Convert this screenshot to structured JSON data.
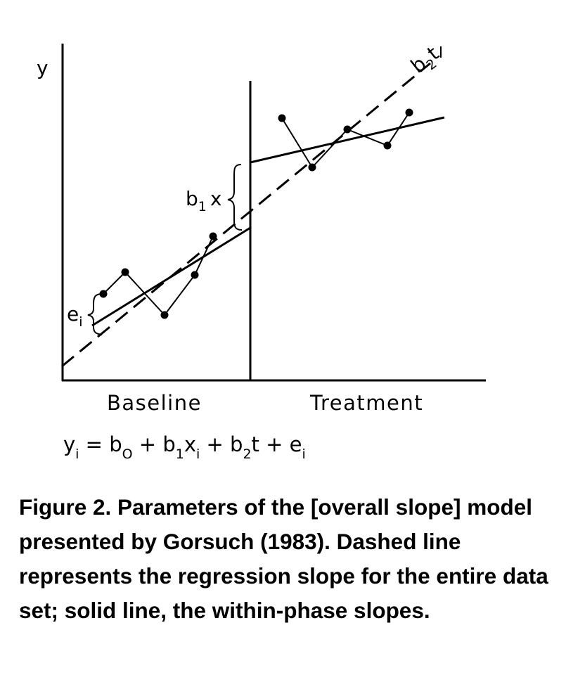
{
  "labels": {
    "y_axis": "y",
    "b2t_base": "b",
    "b2t_sub": "2",
    "b2t_t": "t",
    "b1x_base": "b",
    "b1x_sub": "1",
    "b1x_x": "x",
    "ei_base": "e",
    "ei_sub": "i"
  },
  "phases": {
    "baseline": "Baseline",
    "treatment": "Treatment"
  },
  "equation": {
    "y": "y",
    "y_sub": "i",
    "eq": " = b",
    "b0_sub": "O",
    "plus1": " + b",
    "b1_sub": "1",
    "x": "x",
    "x_sub": "i",
    "plus2": " + b",
    "b2_sub": "2",
    "t": "t",
    "plus3": " + e",
    "e_sub": "i"
  },
  "caption": {
    "text": "Figure 2. Parameters of the [overall slope] model presented by Gorsuch (1983). Dashed line represents the regression slope for the entire data set; solid line, the within-phase slopes."
  },
  "colors": {
    "ink": "#000000",
    "background": "#ffffff"
  }
}
